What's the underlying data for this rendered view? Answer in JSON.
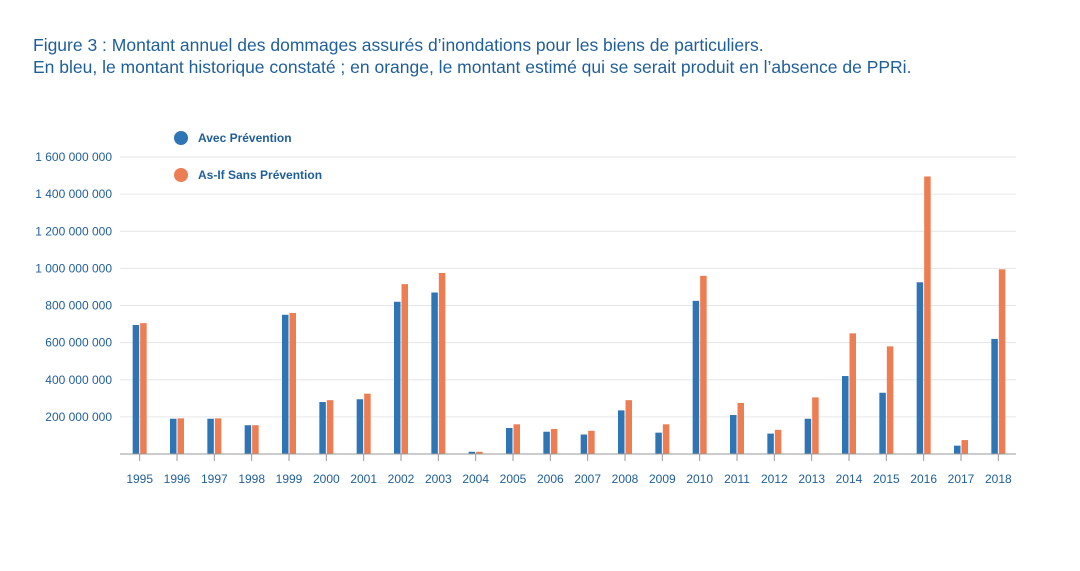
{
  "caption": {
    "line1": "Figure 3 : Montant annuel des dommages assurés d’inondations pour les biens de particuliers.",
    "line2": "En bleu, le montant historique constaté ; en orange, le montant estimé qui se serait produit en l’absence de PPRi."
  },
  "colors": {
    "blue": "#2e75b6",
    "orange": "#ed7d52",
    "grid": "#e6e6e6",
    "axis": "#9a9a9a",
    "text": "#1f5f99"
  },
  "chart_data": {
    "type": "bar",
    "title": "",
    "xlabel": "",
    "ylabel": "",
    "ylim": [
      0,
      1600000000
    ],
    "yticks": [
      200000000,
      400000000,
      600000000,
      800000000,
      1000000000,
      1200000000,
      1400000000,
      1600000000
    ],
    "ytick_labels": [
      "200 000 000",
      "400 000 000",
      "600 000 000",
      "800 000 000",
      "1 000 000 000",
      "1 200 000 000",
      "1 400 000 000",
      "1 600 000 000"
    ],
    "grid": true,
    "legend_position": "top-left",
    "categories": [
      "1995",
      "1996",
      "1997",
      "1998",
      "1999",
      "2000",
      "2001",
      "2002",
      "2003",
      "2004",
      "2005",
      "2006",
      "2007",
      "2008",
      "2009",
      "2010",
      "2011",
      "2012",
      "2013",
      "2014",
      "2015",
      "2016",
      "2017",
      "2018"
    ],
    "series": [
      {
        "name": "Avec Prévention",
        "color": "#2e75b6",
        "values": [
          695000000,
          190000000,
          190000000,
          155000000,
          750000000,
          280000000,
          295000000,
          820000000,
          870000000,
          12000000,
          140000000,
          120000000,
          105000000,
          235000000,
          115000000,
          825000000,
          210000000,
          110000000,
          190000000,
          420000000,
          330000000,
          925000000,
          45000000,
          620000000
        ]
      },
      {
        "name": "As-If Sans Prévention",
        "color": "#ed7d52",
        "values": [
          705000000,
          192000000,
          192000000,
          155000000,
          760000000,
          290000000,
          325000000,
          915000000,
          975000000,
          12000000,
          160000000,
          135000000,
          125000000,
          290000000,
          160000000,
          960000000,
          275000000,
          130000000,
          305000000,
          650000000,
          580000000,
          1495000000,
          75000000,
          995000000
        ]
      }
    ]
  }
}
